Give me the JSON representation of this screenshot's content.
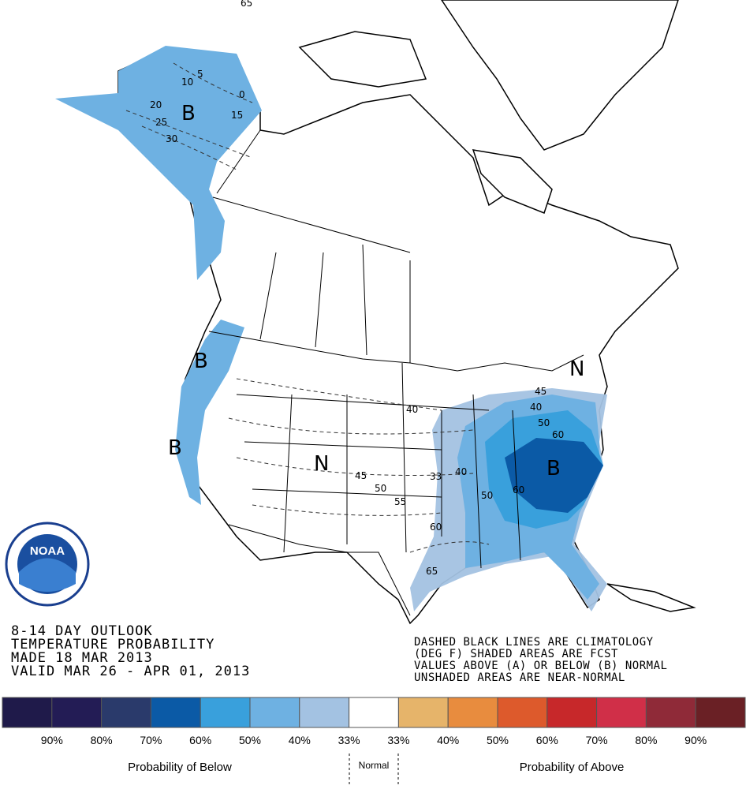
{
  "map": {
    "region_labels": [
      "B",
      "B",
      "B",
      "N",
      "N",
      "B"
    ],
    "contour_labels": [
      10,
      5,
      0,
      20,
      15,
      25,
      30,
      40,
      45,
      50,
      55,
      60,
      65,
      33,
      40,
      50,
      60,
      45,
      40,
      50,
      60,
      65
    ],
    "logo": "NOAA"
  },
  "header": {
    "lines": [
      "8-14 DAY OUTLOOK",
      "TEMPERATURE PROBABILITY",
      "MADE  18 MAR 2013",
      "VALID  MAR 26 - APR 01, 2013"
    ]
  },
  "note": {
    "lines": [
      "DASHED BLACK LINES ARE CLIMATOLOGY",
      "(DEG F) SHADED AREAS ARE FCST",
      "VALUES ABOVE (A) OR BELOW (B) NORMAL",
      "UNSHADED AREAS ARE NEAR-NORMAL"
    ]
  },
  "legend": {
    "colors": [
      "#1f1a4a",
      "#231c55",
      "#2a3a6b",
      "#0b5aa6",
      "#39a0dc",
      "#6eb1e2",
      "#a3c2e2",
      "#ffffff",
      "#e6b46a",
      "#e88c3e",
      "#dd5a2c",
      "#c7282a",
      "#d02f48",
      "#8f2a38",
      "#6a2025"
    ],
    "labels": [
      "90%",
      "80%",
      "70%",
      "60%",
      "50%",
      "40%",
      "33%",
      "33%",
      "40%",
      "50%",
      "60%",
      "70%",
      "80%",
      "90%"
    ],
    "below": "Probability of Below",
    "normal": "Normal",
    "above": "Probability of Above"
  }
}
